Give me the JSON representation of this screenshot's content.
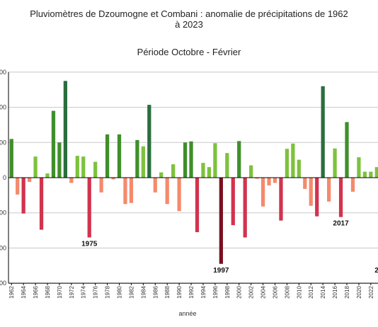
{
  "chart_data": {
    "type": "bar",
    "title_line1": "Pluviomètres de Dzoumogne et Combani : anomalie de précipitations de 1962",
    "title_line2": "à 2023",
    "subtitle": "Période Octobre - Février",
    "xlabel": "année",
    "ylabel": "",
    "grid": true,
    "ylim": [
      -300,
      300
    ],
    "y_ticks": [
      -300,
      -200,
      -100,
      0,
      100,
      200,
      300
    ],
    "y_tick_labels": [
      "00",
      "00",
      "00",
      "0",
      "00",
      "00",
      "00"
    ],
    "x_tick_labels": [
      "1962",
      "1964",
      "1966",
      "1968",
      "1970",
      "1972",
      "1974",
      "1976",
      "1978",
      "1980",
      "1982",
      "1984",
      "1986",
      "1988",
      "1990",
      "1992",
      "1994",
      "1996",
      "1998",
      "2000",
      "2002",
      "2004",
      "2006",
      "2008",
      "2010",
      "2012",
      "2014",
      "2016",
      "2018",
      "2020",
      "2022"
    ],
    "categories": [
      1962,
      1963,
      1964,
      1965,
      1966,
      1967,
      1968,
      1969,
      1970,
      1971,
      1972,
      1973,
      1974,
      1975,
      1976,
      1977,
      1978,
      1979,
      1980,
      1981,
      1982,
      1983,
      1984,
      1985,
      1986,
      1987,
      1988,
      1989,
      1990,
      1991,
      1992,
      1993,
      1994,
      1995,
      1996,
      1997,
      1998,
      1999,
      2000,
      2001,
      2002,
      2003,
      2004,
      2005,
      2006,
      2007,
      2008,
      2009,
      2010,
      2011,
      2012,
      2013,
      2014,
      2015,
      2016,
      2017,
      2018,
      2019,
      2020,
      2021,
      2022,
      2023
    ],
    "values": [
      110,
      -48,
      -102,
      -12,
      60,
      -148,
      12,
      190,
      100,
      275,
      -15,
      62,
      60,
      -170,
      45,
      -42,
      123,
      -5,
      123,
      -75,
      -72,
      107,
      89,
      207,
      -42,
      15,
      -75,
      38,
      -95,
      100,
      103,
      -155,
      42,
      30,
      98,
      -245,
      70,
      -135,
      104,
      -170,
      35,
      -3,
      -82,
      -22,
      -15,
      -122,
      82,
      97,
      51,
      -32,
      -80,
      -110,
      260,
      -68,
      83,
      -112,
      158,
      -40,
      58,
      17,
      17,
      30
    ],
    "annotations": [
      {
        "text": "1975",
        "year": 1975
      },
      {
        "text": "1997",
        "year": 1997
      },
      {
        "text": "2017",
        "year": 2017
      },
      {
        "text": "2",
        "year": 2023
      }
    ],
    "colors": {
      "light_green": "#7dc23d",
      "mid_green": "#3f8f2a",
      "dark_green": "#2a6e3c",
      "light_red": "#f48a6c",
      "mid_red": "#d2334f",
      "dark_red": "#7a0f1f",
      "grid": "#c8c8c8",
      "axis": "#000000"
    }
  }
}
